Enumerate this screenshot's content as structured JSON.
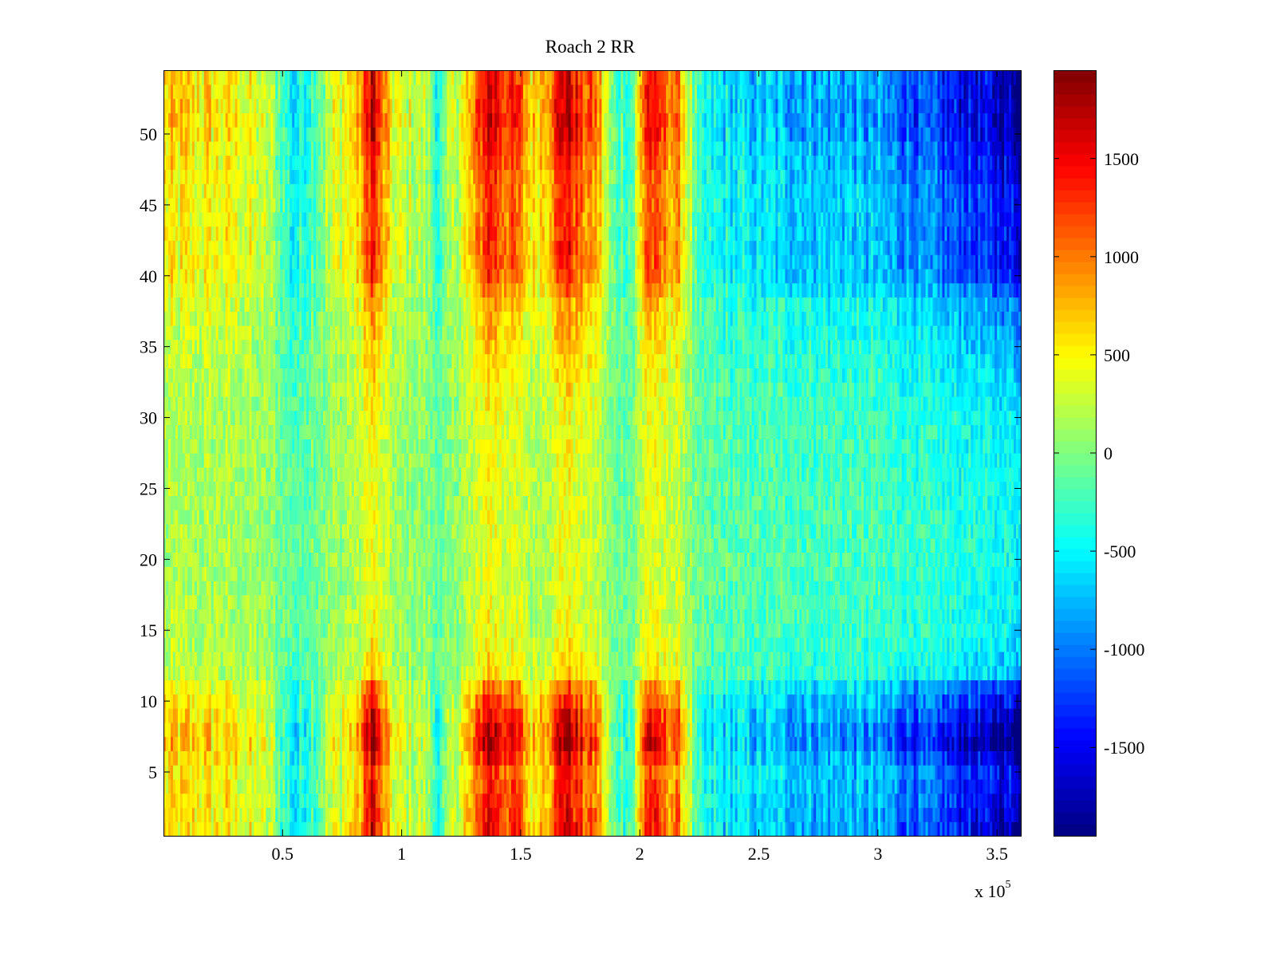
{
  "chart_data": {
    "type": "heatmap",
    "title": "Roach 2 RR",
    "xlabel": "",
    "ylabel": "",
    "x_multiplier_label": {
      "base": "x 10",
      "exponent": "5"
    },
    "xlim": [
      0,
      3.6
    ],
    "ylim": [
      0.5,
      54.5
    ],
    "x_ticks": [
      0.5,
      1,
      1.5,
      2,
      2.5,
      3,
      3.5
    ],
    "x_tick_labels": [
      "0.5",
      "1",
      "1.5",
      "2",
      "2.5",
      "3",
      "3.5"
    ],
    "y_ticks": [
      5,
      10,
      15,
      20,
      25,
      30,
      35,
      40,
      45,
      50
    ],
    "y_tick_labels": [
      "5",
      "10",
      "15",
      "20",
      "25",
      "30",
      "35",
      "40",
      "45",
      "50"
    ],
    "rows": 54,
    "columns": 360,
    "colormap": "jet",
    "clim": [
      -1950,
      1950
    ],
    "colorbar_ticks": [
      1500,
      1000,
      500,
      0,
      -500,
      -1000,
      -1500
    ],
    "colorbar_tick_labels": [
      "1500",
      "1000",
      "500",
      "0",
      "-500",
      "-1000",
      "-1500"
    ],
    "column_profile": [
      {
        "x": 0.0,
        "value": 600
      },
      {
        "x": 0.3,
        "value": 520
      },
      {
        "x": 0.45,
        "value": 200
      },
      {
        "x": 0.55,
        "value": -600
      },
      {
        "x": 0.6,
        "value": -300
      },
      {
        "x": 0.72,
        "value": 350
      },
      {
        "x": 0.82,
        "value": 700
      },
      {
        "x": 0.88,
        "value": 1850
      },
      {
        "x": 0.9,
        "value": 1200
      },
      {
        "x": 0.97,
        "value": 350
      },
      {
        "x": 1.1,
        "value": 200
      },
      {
        "x": 1.16,
        "value": -400
      },
      {
        "x": 1.22,
        "value": 250
      },
      {
        "x": 1.3,
        "value": 800
      },
      {
        "x": 1.36,
        "value": 1700
      },
      {
        "x": 1.42,
        "value": 1350
      },
      {
        "x": 1.48,
        "value": 1250
      },
      {
        "x": 1.55,
        "value": 600
      },
      {
        "x": 1.62,
        "value": 1000
      },
      {
        "x": 1.69,
        "value": 1800
      },
      {
        "x": 1.76,
        "value": 1150
      },
      {
        "x": 1.82,
        "value": 1000
      },
      {
        "x": 1.88,
        "value": -100
      },
      {
        "x": 1.97,
        "value": -200
      },
      {
        "x": 2.03,
        "value": 1500
      },
      {
        "x": 2.1,
        "value": 1100
      },
      {
        "x": 2.17,
        "value": 900
      },
      {
        "x": 2.25,
        "value": -500
      },
      {
        "x": 2.5,
        "value": -700
      },
      {
        "x": 2.8,
        "value": -800
      },
      {
        "x": 3.0,
        "value": -900
      },
      {
        "x": 3.2,
        "value": -1200
      },
      {
        "x": 3.4,
        "value": -1500
      },
      {
        "x": 3.6,
        "value": -1800
      }
    ],
    "row_profile": [
      {
        "y": 1,
        "value": 1.0
      },
      {
        "y": 5,
        "value": 0.85
      },
      {
        "y": 7,
        "value": 1.15
      },
      {
        "y": 8,
        "value": 1.1
      },
      {
        "y": 10,
        "value": 0.85
      },
      {
        "y": 11,
        "value": 0.7
      },
      {
        "y": 12,
        "value": 0.4
      },
      {
        "y": 15,
        "value": 0.3
      },
      {
        "y": 20,
        "value": 0.25
      },
      {
        "y": 25,
        "value": 0.28
      },
      {
        "y": 30,
        "value": 0.3
      },
      {
        "y": 35,
        "value": 0.45
      },
      {
        "y": 38,
        "value": 0.55
      },
      {
        "y": 40,
        "value": 0.8
      },
      {
        "y": 42,
        "value": 0.85
      },
      {
        "y": 45,
        "value": 0.8
      },
      {
        "y": 48,
        "value": 0.9
      },
      {
        "y": 51,
        "value": 1.05
      },
      {
        "y": 54,
        "value": 1.0
      }
    ],
    "grid": false,
    "legend": "colorbar at right"
  }
}
